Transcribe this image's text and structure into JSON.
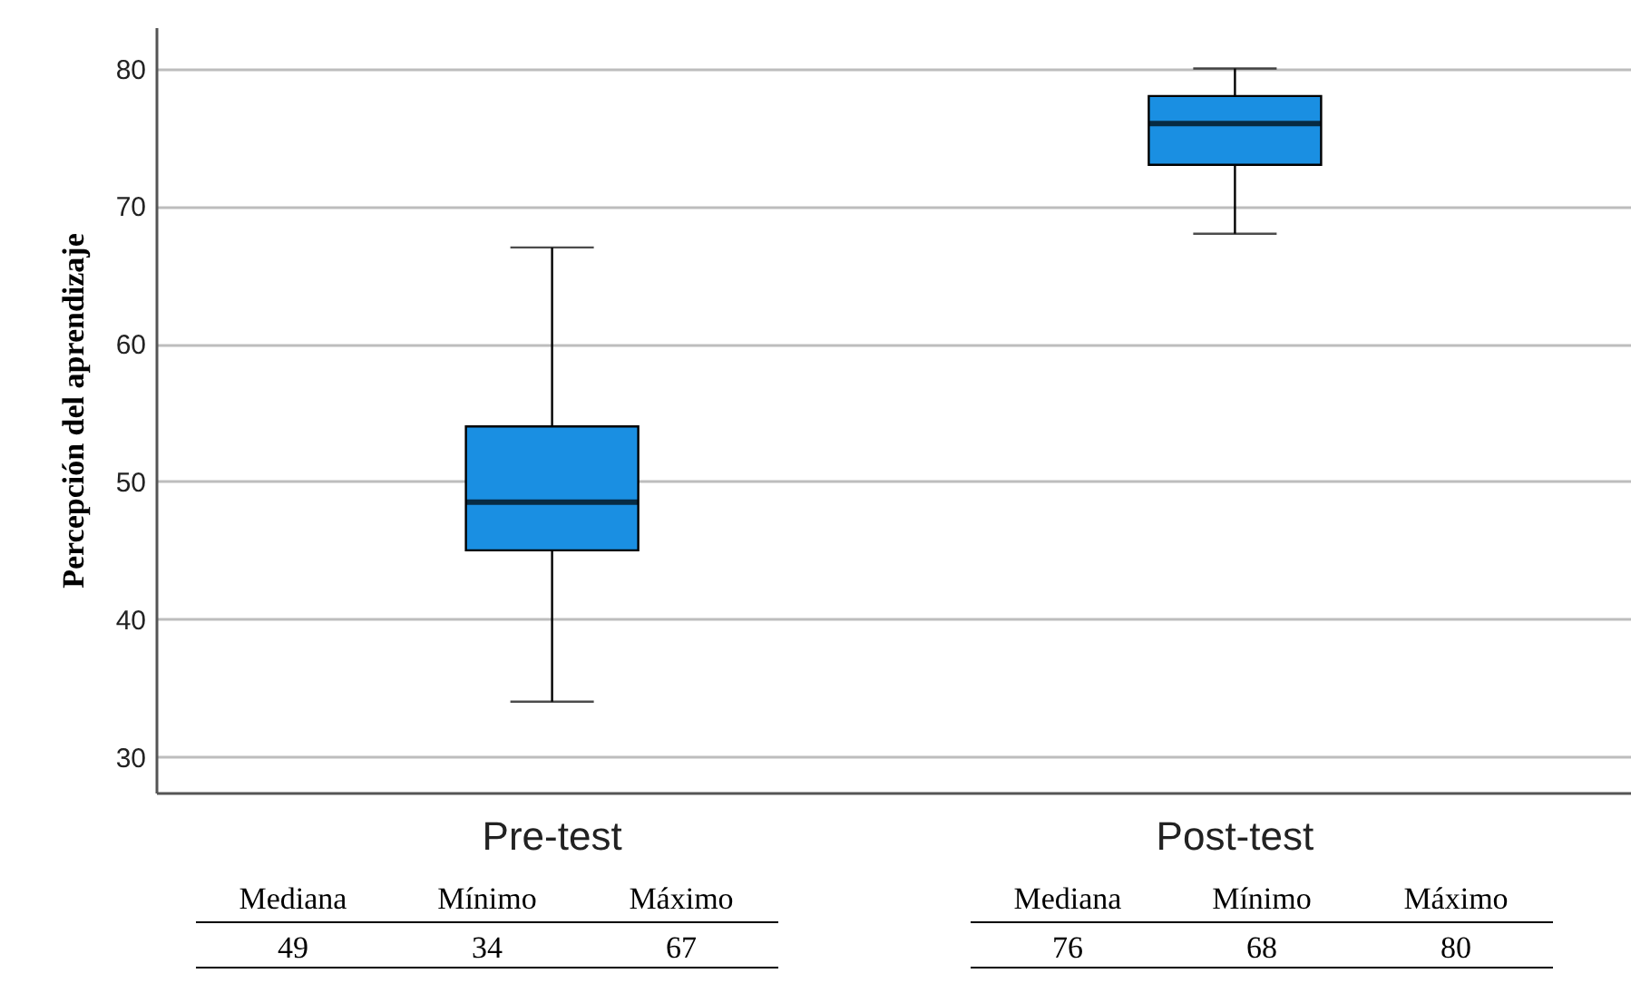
{
  "chart_data": {
    "type": "box",
    "ylabel": "Percepción del aprendizaje",
    "categories": [
      "Pre-test",
      "Post-test"
    ],
    "boxes": [
      {
        "low": 34,
        "q1": 45,
        "median": 48.5,
        "q3": 54,
        "high": 67
      },
      {
        "low": 68,
        "q1": 73,
        "median": 76,
        "q3": 78,
        "high": 80
      }
    ],
    "color": "#1a8fe2",
    "ylim": [
      27.4,
      83
    ],
    "yticks": [
      30,
      40,
      50,
      60,
      70,
      80
    ],
    "grid": "y",
    "annotations": [
      "Mediana",
      "Mínimo",
      "Máximo",
      "49",
      "34",
      "67",
      "Mediana",
      "Mínimo",
      "Máximo",
      "76",
      "68",
      "80"
    ]
  }
}
